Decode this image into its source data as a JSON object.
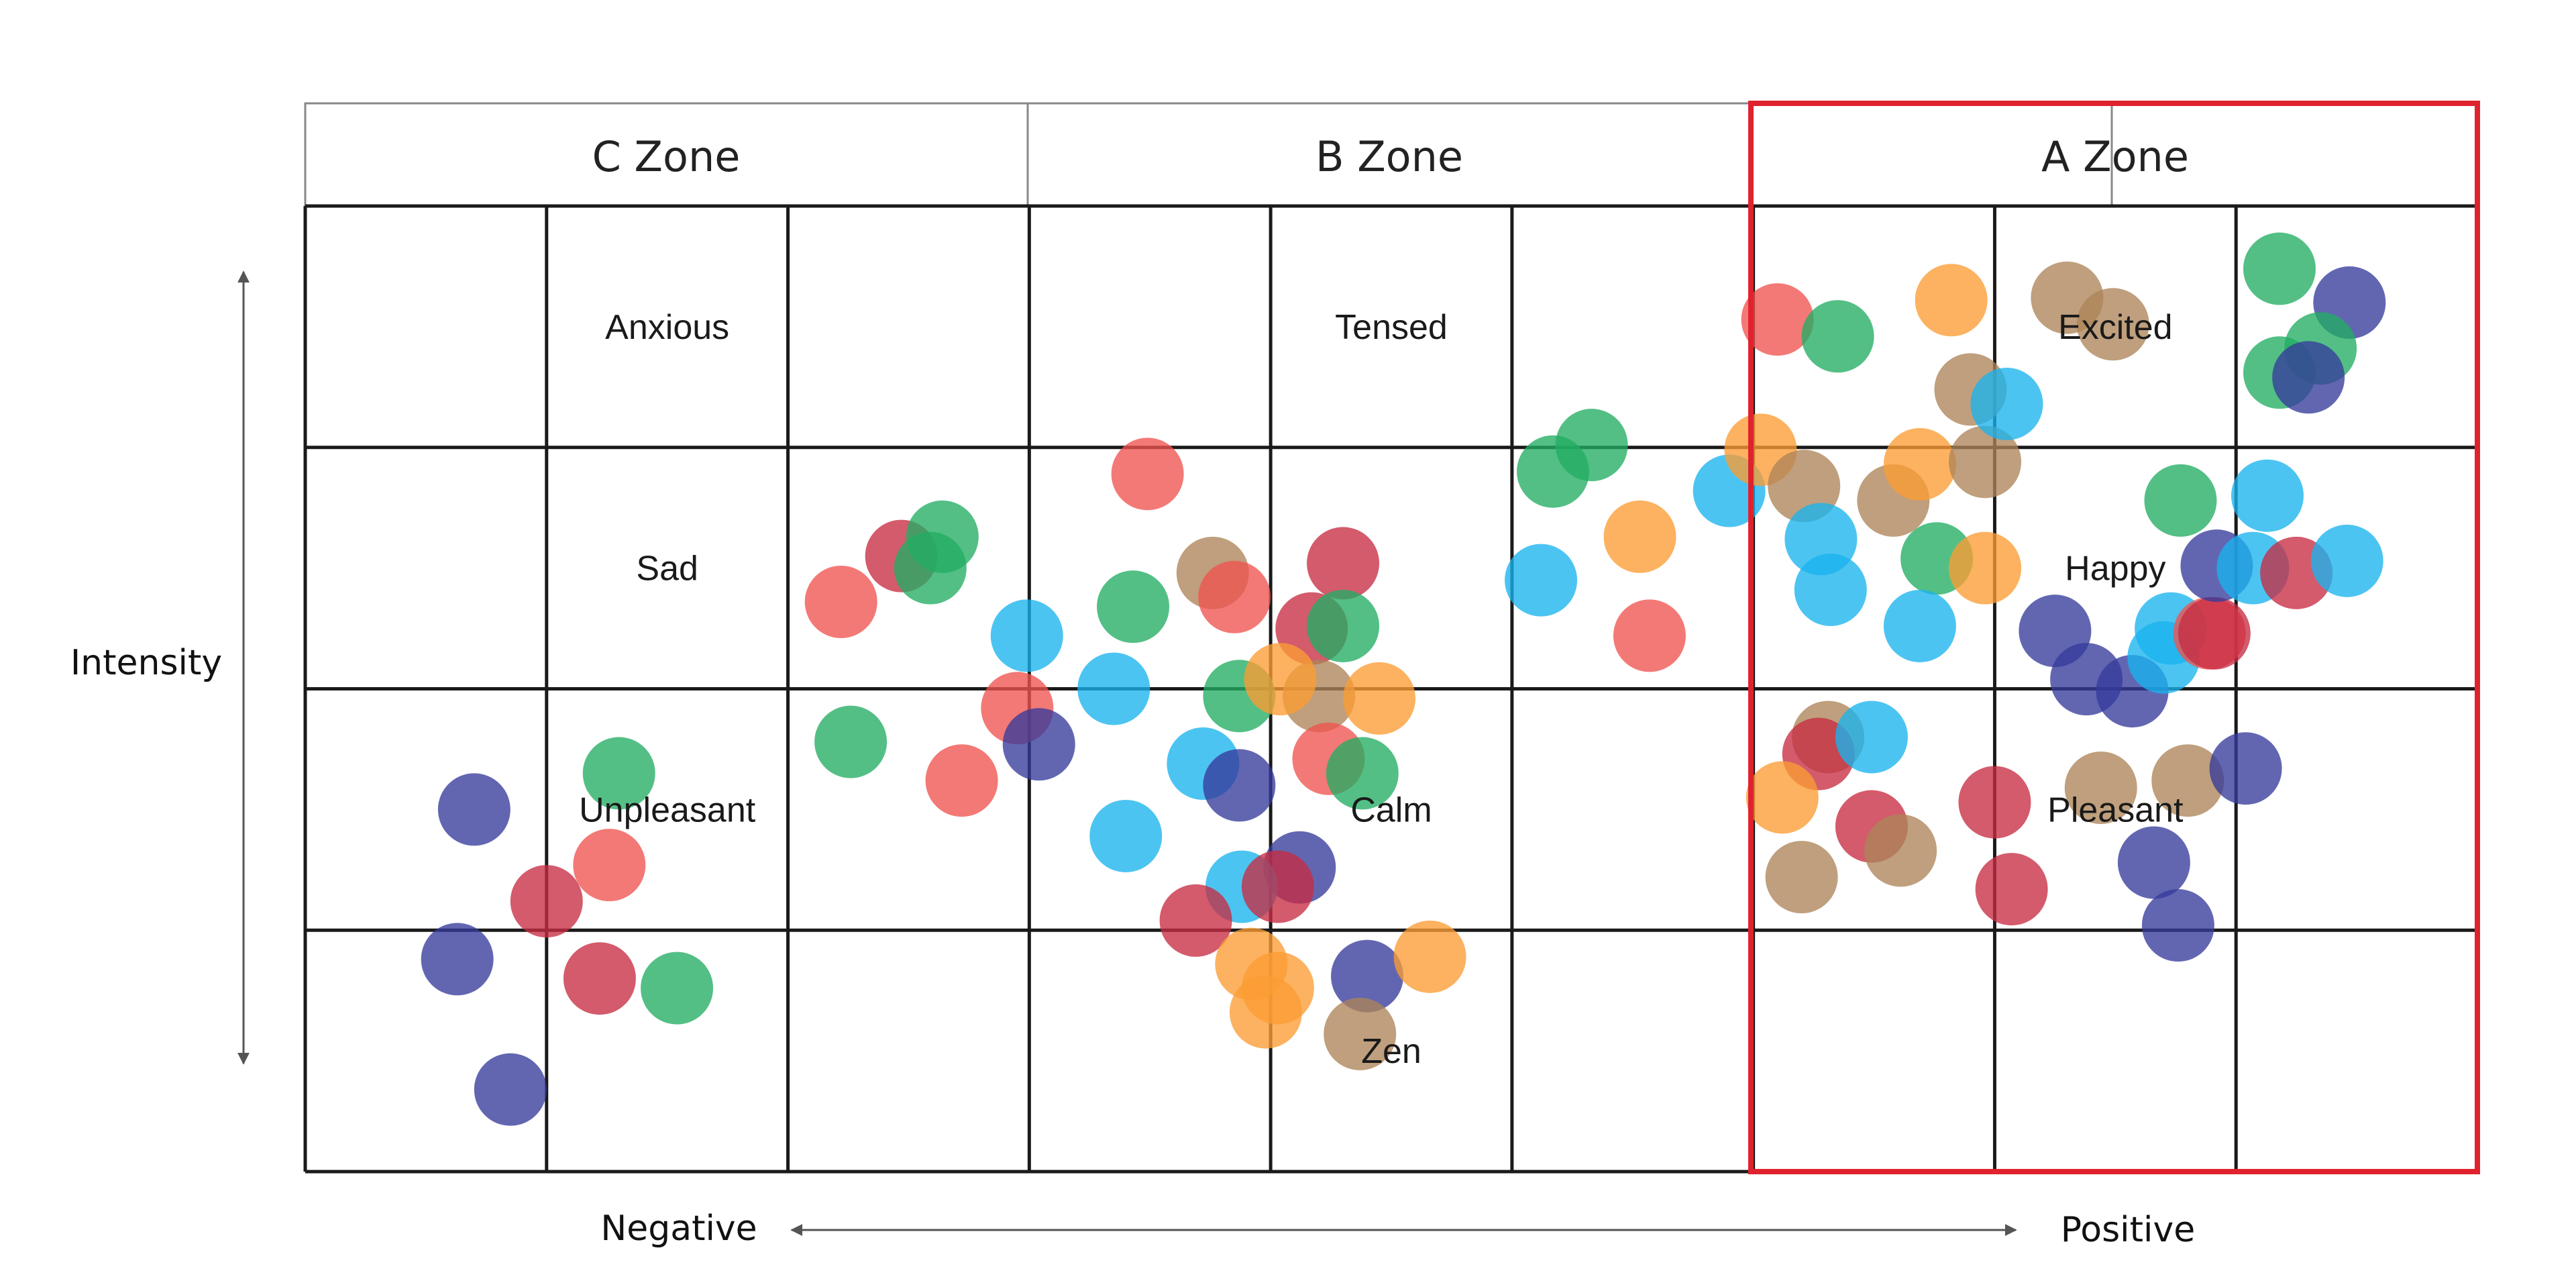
{
  "zones": [
    {
      "id": "c",
      "title": "C Zone"
    },
    {
      "id": "b",
      "title": "B Zone"
    },
    {
      "id": "a",
      "title": "A Zone",
      "highlighted": true
    }
  ],
  "cell_labels": [
    {
      "key": "anxious",
      "text": "Anxious",
      "col": 1,
      "row": 0
    },
    {
      "key": "tensed",
      "text": "Tensed",
      "col": 4,
      "row": 0
    },
    {
      "key": "excited",
      "text": "Excited",
      "col": 7,
      "row": 0
    },
    {
      "key": "sad",
      "text": "Sad",
      "col": 1,
      "row": 1
    },
    {
      "key": "happy",
      "text": "Happy",
      "col": 7,
      "row": 1
    },
    {
      "key": "unpleasant",
      "text": "Unpleasant",
      "col": 1,
      "row": 2
    },
    {
      "key": "calm",
      "text": "Calm",
      "col": 4,
      "row": 2
    },
    {
      "key": "pleasant",
      "text": "Pleasant",
      "col": 7,
      "row": 2
    },
    {
      "key": "zen",
      "text": "Zen",
      "col": 4,
      "row": 3
    }
  ],
  "axes": {
    "vertical": "Intensity",
    "negative": "Negative",
    "positive": "Positive"
  },
  "colors": {
    "grid": "#1a1a1a",
    "highlight": "#e0222e",
    "red": "#ef5350",
    "crimson": "#c62d42",
    "green": "#22ad63",
    "blue": "#1ab4ee",
    "orange": "#fb9c33",
    "tan": "#ad8458",
    "purple": "#363b9b"
  },
  "grid": {
    "columns": 9,
    "rows": 4
  },
  "chart_data": {
    "type": "scatter",
    "x_range": [
      0,
      9
    ],
    "y_range": [
      0,
      4
    ],
    "points": [
      {
        "x": 0.7,
        "y": 1.5,
        "c": "purple"
      },
      {
        "x": 1.3,
        "y": 1.65,
        "c": "green"
      },
      {
        "x": 1.26,
        "y": 1.27,
        "c": "red"
      },
      {
        "x": 1.0,
        "y": 1.12,
        "c": "crimson"
      },
      {
        "x": 0.63,
        "y": 0.88,
        "c": "purple"
      },
      {
        "x": 1.22,
        "y": 0.8,
        "c": "crimson"
      },
      {
        "x": 1.54,
        "y": 0.76,
        "c": "green"
      },
      {
        "x": 0.85,
        "y": 0.34,
        "c": "purple"
      },
      {
        "x": 2.22,
        "y": 2.36,
        "c": "red"
      },
      {
        "x": 2.47,
        "y": 2.55,
        "c": "crimson"
      },
      {
        "x": 2.64,
        "y": 2.63,
        "c": "green"
      },
      {
        "x": 2.59,
        "y": 2.5,
        "c": "green"
      },
      {
        "x": 2.99,
        "y": 2.22,
        "c": "blue"
      },
      {
        "x": 2.95,
        "y": 1.92,
        "c": "red"
      },
      {
        "x": 2.26,
        "y": 1.78,
        "c": "green"
      },
      {
        "x": 2.72,
        "y": 1.62,
        "c": "red"
      },
      {
        "x": 3.04,
        "y": 1.77,
        "c": "purple"
      },
      {
        "x": 3.49,
        "y": 2.89,
        "c": "red"
      },
      {
        "x": 3.43,
        "y": 2.34,
        "c": "green"
      },
      {
        "x": 3.35,
        "y": 2.0,
        "c": "blue"
      },
      {
        "x": 3.76,
        "y": 2.48,
        "c": "tan"
      },
      {
        "x": 3.85,
        "y": 2.38,
        "c": "red"
      },
      {
        "x": 4.3,
        "y": 2.52,
        "c": "crimson"
      },
      {
        "x": 4.17,
        "y": 2.25,
        "c": "crimson"
      },
      {
        "x": 4.3,
        "y": 2.26,
        "c": "green"
      },
      {
        "x": 4.2,
        "y": 1.97,
        "c": "tan"
      },
      {
        "x": 3.87,
        "y": 1.97,
        "c": "green"
      },
      {
        "x": 4.04,
        "y": 2.04,
        "c": "orange"
      },
      {
        "x": 4.45,
        "y": 1.96,
        "c": "orange"
      },
      {
        "x": 3.72,
        "y": 1.69,
        "c": "blue"
      },
      {
        "x": 4.24,
        "y": 1.71,
        "c": "red"
      },
      {
        "x": 4.38,
        "y": 1.65,
        "c": "green"
      },
      {
        "x": 3.87,
        "y": 1.6,
        "c": "purple"
      },
      {
        "x": 3.4,
        "y": 1.39,
        "c": "blue"
      },
      {
        "x": 4.12,
        "y": 1.26,
        "c": "purple"
      },
      {
        "x": 3.88,
        "y": 1.18,
        "c": "blue"
      },
      {
        "x": 4.03,
        "y": 1.18,
        "c": "crimson"
      },
      {
        "x": 3.69,
        "y": 1.04,
        "c": "crimson"
      },
      {
        "x": 3.92,
        "y": 0.86,
        "c": "orange"
      },
      {
        "x": 4.03,
        "y": 0.76,
        "c": "orange"
      },
      {
        "x": 3.98,
        "y": 0.66,
        "c": "orange"
      },
      {
        "x": 4.4,
        "y": 0.81,
        "c": "purple"
      },
      {
        "x": 4.66,
        "y": 0.89,
        "c": "orange"
      },
      {
        "x": 4.37,
        "y": 0.57,
        "c": "tan"
      },
      {
        "x": 5.17,
        "y": 2.9,
        "c": "green"
      },
      {
        "x": 5.33,
        "y": 3.01,
        "c": "green"
      },
      {
        "x": 5.12,
        "y": 2.45,
        "c": "blue"
      },
      {
        "x": 5.53,
        "y": 2.63,
        "c": "orange"
      },
      {
        "x": 5.57,
        "y": 2.22,
        "c": "red"
      },
      {
        "x": 5.9,
        "y": 2.82,
        "c": "blue"
      },
      {
        "x": 6.03,
        "y": 2.99,
        "c": "orange"
      },
      {
        "x": 6.1,
        "y": 3.53,
        "c": "red"
      },
      {
        "x": 6.35,
        "y": 3.46,
        "c": "green"
      },
      {
        "x": 6.21,
        "y": 2.84,
        "c": "tan"
      },
      {
        "x": 6.28,
        "y": 2.62,
        "c": "blue"
      },
      {
        "x": 6.32,
        "y": 2.41,
        "c": "blue"
      },
      {
        "x": 6.58,
        "y": 2.78,
        "c": "tan"
      },
      {
        "x": 6.69,
        "y": 2.93,
        "c": "orange"
      },
      {
        "x": 6.76,
        "y": 2.54,
        "c": "green"
      },
      {
        "x": 6.69,
        "y": 2.26,
        "c": "blue"
      },
      {
        "x": 6.82,
        "y": 3.61,
        "c": "orange"
      },
      {
        "x": 6.9,
        "y": 3.24,
        "c": "tan"
      },
      {
        "x": 6.96,
        "y": 2.94,
        "c": "tan"
      },
      {
        "x": 6.96,
        "y": 2.5,
        "c": "orange"
      },
      {
        "x": 7.05,
        "y": 3.18,
        "c": "blue"
      },
      {
        "x": 7.3,
        "y": 3.62,
        "c": "tan"
      },
      {
        "x": 7.49,
        "y": 3.51,
        "c": "tan"
      },
      {
        "x": 6.31,
        "y": 1.8,
        "c": "tan"
      },
      {
        "x": 6.27,
        "y": 1.73,
        "c": "crimson"
      },
      {
        "x": 6.49,
        "y": 1.8,
        "c": "blue"
      },
      {
        "x": 6.12,
        "y": 1.55,
        "c": "orange"
      },
      {
        "x": 6.49,
        "y": 1.43,
        "c": "crimson"
      },
      {
        "x": 6.61,
        "y": 1.33,
        "c": "tan"
      },
      {
        "x": 6.2,
        "y": 1.22,
        "c": "tan"
      },
      {
        "x": 7.0,
        "y": 1.53,
        "c": "crimson"
      },
      {
        "x": 7.07,
        "y": 1.17,
        "c": "crimson"
      },
      {
        "x": 7.25,
        "y": 2.24,
        "c": "purple"
      },
      {
        "x": 7.38,
        "y": 2.04,
        "c": "purple"
      },
      {
        "x": 7.57,
        "y": 1.99,
        "c": "purple"
      },
      {
        "x": 7.44,
        "y": 1.59,
        "c": "tan"
      },
      {
        "x": 7.73,
        "y": 2.25,
        "c": "blue"
      },
      {
        "x": 7.7,
        "y": 2.13,
        "c": "blue"
      },
      {
        "x": 7.89,
        "y": 2.23,
        "c": "red"
      },
      {
        "x": 7.91,
        "y": 2.23,
        "c": "crimson"
      },
      {
        "x": 7.77,
        "y": 2.78,
        "c": "green"
      },
      {
        "x": 7.92,
        "y": 2.51,
        "c": "purple"
      },
      {
        "x": 8.07,
        "y": 2.5,
        "c": "blue"
      },
      {
        "x": 8.13,
        "y": 2.8,
        "c": "blue"
      },
      {
        "x": 8.25,
        "y": 2.48,
        "c": "crimson"
      },
      {
        "x": 8.46,
        "y": 2.53,
        "c": "blue"
      },
      {
        "x": 8.18,
        "y": 3.74,
        "c": "green"
      },
      {
        "x": 8.47,
        "y": 3.6,
        "c": "purple"
      },
      {
        "x": 8.35,
        "y": 3.41,
        "c": "green"
      },
      {
        "x": 8.18,
        "y": 3.31,
        "c": "green"
      },
      {
        "x": 8.3,
        "y": 3.29,
        "c": "purple"
      },
      {
        "x": 7.8,
        "y": 1.62,
        "c": "tan"
      },
      {
        "x": 8.04,
        "y": 1.67,
        "c": "purple"
      },
      {
        "x": 7.66,
        "y": 1.28,
        "c": "purple"
      },
      {
        "x": 7.76,
        "y": 1.02,
        "c": "purple"
      }
    ]
  }
}
